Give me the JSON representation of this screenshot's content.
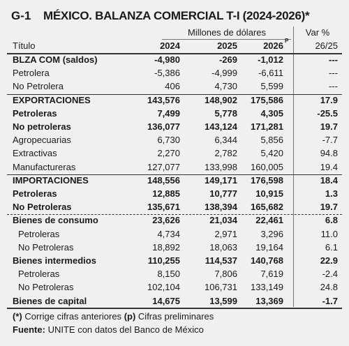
{
  "header": {
    "code": "G-1",
    "title": "MÉXICO. BALANZA COMERCIAL T-I (2024-2026)*",
    "unit": "Millones de dólares",
    "var_title": "Var %"
  },
  "table": {
    "columns": [
      "Título",
      "2024",
      "2025",
      "2026",
      "26/25"
    ],
    "prelim_mark": "P",
    "rows": [
      [
        "BLZA COM (saldos)",
        "-4,980",
        "-269",
        "-1,012",
        "---"
      ],
      [
        "Petrolera",
        "-5,386",
        "-4,999",
        "-6,611",
        "---"
      ],
      [
        "No Petrolera",
        "406",
        "4,730",
        "5,599",
        "---"
      ],
      [
        "EXPORTACIONES",
        "143,576",
        "148,902",
        "175,586",
        "17.9"
      ],
      [
        "Petroleras",
        "7,499",
        "5,778",
        "4,305",
        "-25.5"
      ],
      [
        "No petroleras",
        "136,077",
        "143,124",
        "171,281",
        "19.7"
      ],
      [
        "Agropecuarias",
        "6,730",
        "6,344",
        "5,856",
        "-7.7"
      ],
      [
        "Extractivas",
        "2,270",
        "2,782",
        "5,420",
        "94.8"
      ],
      [
        "Manufactureras",
        "127,077",
        "133,998",
        "160,005",
        "19.4"
      ],
      [
        "IMPORTACIONES",
        "148,556",
        "149,171",
        "176,598",
        "18.4"
      ],
      [
        "Petroleras",
        "12,885",
        "10,777",
        "10,915",
        "1.3"
      ],
      [
        "No Petroleras",
        "135,671",
        "138,394",
        "165,682",
        "19.7"
      ],
      [
        "Bienes de consumo",
        "23,626",
        "21,034",
        "22,461",
        "6.8"
      ],
      [
        "Petroleras",
        "4,734",
        "2,971",
        "3,296",
        "11.0"
      ],
      [
        "No Petroleras",
        "18,892",
        "18,063",
        "19,164",
        "6.1"
      ],
      [
        "Bienes intermedios",
        "110,255",
        "114,537",
        "140,768",
        "22.9"
      ],
      [
        "Petroleras",
        "8,150",
        "7,806",
        "7,619",
        "-2.4"
      ],
      [
        "No Petroleras",
        "102,104",
        "106,731",
        "133,149",
        "24.8"
      ],
      [
        "Bienes de capital",
        "14,675",
        "13,599",
        "13,369",
        "-1.7"
      ]
    ]
  },
  "footer": {
    "notes": [
      {
        "mark": "(*)",
        "text": "Corrige cifras anteriores"
      },
      {
        "mark": "(p)",
        "text": "Cifras preliminares"
      }
    ],
    "source_label": "Fuente:",
    "source": "UNITE con datos del Banco de México"
  }
}
